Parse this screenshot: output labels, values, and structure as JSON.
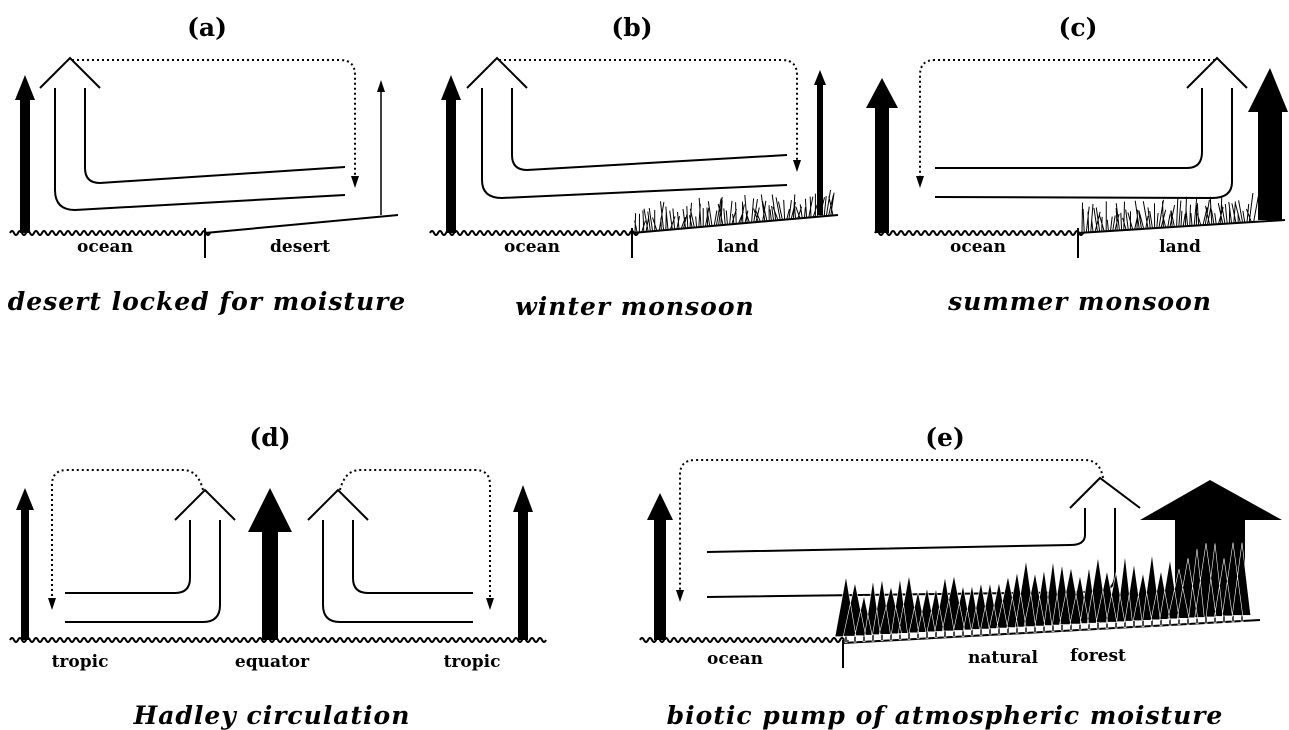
{
  "panels": [
    {
      "label": "(a)",
      "caption": "desert locked for moisture",
      "surfaces": [
        "ocean",
        "desert"
      ]
    },
    {
      "label": "(b)",
      "caption": "winter monsoon",
      "surfaces": [
        "ocean",
        "land"
      ]
    },
    {
      "label": "(c)",
      "caption": "summer monsoon",
      "surfaces": [
        "ocean",
        "land"
      ]
    },
    {
      "label": "(d)",
      "caption": "Hadley circulation",
      "surfaces": [
        "tropic",
        "equator",
        "tropic"
      ]
    },
    {
      "label": "(e)",
      "caption": "biotic pump of atmospheric moisture",
      "surfaces": [
        "ocean",
        "natural",
        "forest"
      ]
    }
  ]
}
